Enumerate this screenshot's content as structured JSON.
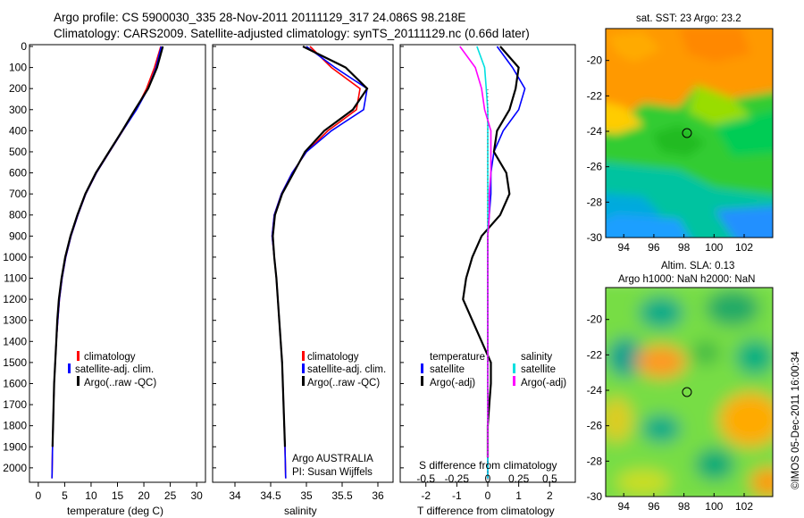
{
  "title_line1": "Argo profile: CS 5900030_335 28-Nov-2011 20111129_317 24.086S 98.218E",
  "title_line2": "Climatology: CARS2009. Satellite-adjusted climatology: synTS_20111129.nc (0.66d later)",
  "timestamp": "©IMOS 05-Dec-2011 16:00:34",
  "chart_data": [
    {
      "type": "line",
      "name": "temperature-profile",
      "xlabel": "temperature (deg C)",
      "ylabel": "",
      "xlim": [
        -1.5,
        31.5
      ],
      "ylim": [
        2060,
        0
      ],
      "xticks": [
        0,
        5,
        10,
        15,
        20,
        25,
        30
      ],
      "yticks": [
        0,
        100,
        200,
        300,
        400,
        500,
        600,
        700,
        800,
        900,
        1000,
        1100,
        1200,
        1300,
        1400,
        1500,
        1600,
        1700,
        1800,
        1900,
        2000
      ],
      "legend": [
        "climatology",
        "satellite-adj. clim.",
        "Argo(..raw -QC)"
      ],
      "legend_position": "lower-middle",
      "series": [
        {
          "name": "climatology",
          "color": "#ff0000",
          "x": [
            23.2,
            22.0,
            20.5,
            18.5,
            16.0,
            13.5,
            11.0,
            9.0,
            7.5,
            6.2,
            5.2,
            4.5,
            4.0,
            3.7,
            3.4,
            3.2,
            3.0,
            2.9,
            2.8,
            2.7,
            2.6
          ],
          "y": [
            0,
            100,
            200,
            300,
            400,
            500,
            600,
            700,
            800,
            900,
            1000,
            1100,
            1200,
            1300,
            1400,
            1500,
            1600,
            1700,
            1800,
            1900,
            2050
          ]
        },
        {
          "name": "satellite-adj. clim.",
          "color": "#0000ff",
          "x": [
            23.3,
            22.3,
            20.8,
            18.6,
            16.0,
            13.5,
            11.0,
            9.0,
            7.5,
            6.2,
            5.2,
            4.5,
            4.0,
            3.7,
            3.4,
            3.2,
            3.0,
            2.9,
            2.8,
            2.7,
            2.6
          ],
          "y": [
            0,
            100,
            200,
            300,
            400,
            500,
            600,
            700,
            800,
            900,
            1000,
            1100,
            1200,
            1300,
            1400,
            1500,
            1600,
            1700,
            1800,
            1900,
            2050
          ]
        },
        {
          "name": "Argo(..raw -QC)",
          "color": "#000000",
          "x": [
            23.6,
            22.5,
            20.8,
            18.3,
            15.9,
            13.4,
            10.9,
            8.9,
            7.4,
            6.1,
            5.1,
            4.4,
            3.9,
            3.6,
            3.4,
            3.2,
            3.0,
            2.9,
            2.8,
            2.7
          ],
          "y": [
            0,
            100,
            200,
            300,
            400,
            500,
            600,
            700,
            800,
            900,
            1000,
            1100,
            1200,
            1300,
            1400,
            1500,
            1600,
            1700,
            1800,
            1900
          ]
        }
      ]
    },
    {
      "type": "line",
      "name": "salinity-profile",
      "xlabel": "salinity",
      "xlim": [
        33.7,
        36.2
      ],
      "ylim": [
        2060,
        0
      ],
      "xticks": [
        34,
        34.5,
        35,
        35.5,
        36
      ],
      "xticklabels": [
        "34",
        "34.5",
        "35",
        "35.5",
        "36"
      ],
      "legend": [
        "climatology",
        "satellite-adj. clim.",
        "Argo(..raw -QC)"
      ],
      "annotation": [
        "Argo AUSTRALIA",
        "PI: Susan Wijffels"
      ],
      "series": [
        {
          "name": "climatology",
          "color": "#ff0000",
          "x": [
            35.05,
            35.35,
            35.75,
            35.7,
            35.3,
            35.0,
            34.8,
            34.65,
            34.55,
            34.52,
            34.55,
            34.58,
            34.6,
            34.62,
            34.64,
            34.66,
            34.67,
            34.68,
            34.69,
            34.7,
            34.71
          ],
          "y": [
            0,
            100,
            200,
            300,
            400,
            500,
            600,
            700,
            800,
            900,
            1000,
            1100,
            1200,
            1300,
            1400,
            1500,
            1600,
            1700,
            1800,
            1900,
            2050
          ]
        },
        {
          "name": "satellite-adj. clim.",
          "color": "#0000ff",
          "x": [
            35.0,
            35.4,
            35.85,
            35.8,
            35.35,
            35.0,
            34.8,
            34.65,
            34.55,
            34.52,
            34.55,
            34.58,
            34.6,
            34.62,
            34.64,
            34.66,
            34.67,
            34.68,
            34.69,
            34.7,
            34.71
          ],
          "y": [
            0,
            100,
            200,
            300,
            400,
            500,
            600,
            700,
            800,
            900,
            1000,
            1100,
            1200,
            1300,
            1400,
            1500,
            1600,
            1700,
            1800,
            1900,
            2050
          ]
        },
        {
          "name": "Argo(..raw -QC)",
          "color": "#000000",
          "x": [
            34.95,
            35.55,
            35.85,
            35.65,
            35.25,
            34.98,
            34.82,
            34.66,
            34.56,
            34.53,
            34.55,
            34.58,
            34.6,
            34.62,
            34.64,
            34.66,
            34.67,
            34.68,
            34.69,
            34.7
          ],
          "y": [
            0,
            100,
            200,
            300,
            400,
            500,
            600,
            700,
            800,
            900,
            1000,
            1100,
            1200,
            1300,
            1400,
            1500,
            1600,
            1700,
            1800,
            1900
          ]
        }
      ]
    },
    {
      "type": "line",
      "name": "difference-profile",
      "xlabel": "T difference from climatology",
      "xlabel_top": "S difference from climatology",
      "xlim": [
        -2.8,
        2.8
      ],
      "ylim": [
        2060,
        0
      ],
      "xticks": [
        -2,
        -1,
        0,
        1,
        2
      ],
      "xticklabels": [
        "-2",
        "-1",
        "0",
        "1",
        "2"
      ],
      "sticks": [
        -0.5,
        -0.25,
        0,
        0.25,
        0.5
      ],
      "sticklabels": [
        "-0.5",
        "-0.25",
        "0",
        "0.25",
        "0.5"
      ],
      "legend_temperature_title": "temperature",
      "legend_salinity_title": "salinity",
      "legend": [
        "satellite",
        "Argo(-adj)",
        "satellite",
        "Argo(-adj)"
      ],
      "series": [
        {
          "name": "T satellite",
          "color": "#0000ff",
          "x": [
            0.3,
            0.8,
            1.2,
            1.0,
            0.5,
            0.2,
            0.1,
            0.1,
            0.05,
            0.0,
            0.0,
            0.0,
            0.0,
            0.0,
            0.0,
            0.0,
            0.0,
            0.0,
            0.0,
            0.0
          ],
          "y": [
            0,
            100,
            200,
            300,
            400,
            500,
            600,
            700,
            800,
            900,
            1000,
            1100,
            1200,
            1300,
            1400,
            1500,
            1600,
            1700,
            1800,
            2050
          ]
        },
        {
          "name": "T Argo(-adj)",
          "color": "#000000",
          "x": [
            0.4,
            1.0,
            0.9,
            0.7,
            0.3,
            0.2,
            0.6,
            0.7,
            0.4,
            -0.2,
            -0.5,
            -0.7,
            -0.8,
            -0.5,
            -0.2,
            0.1,
            0.1,
            0.05,
            0.0,
            0.0
          ],
          "y": [
            0,
            100,
            200,
            300,
            400,
            500,
            600,
            700,
            800,
            900,
            1000,
            1100,
            1200,
            1300,
            1400,
            1500,
            1600,
            1700,
            1800,
            1950
          ]
        },
        {
          "name": "S satellite",
          "color": "#00e0e0",
          "x": [
            -0.35,
            -0.1,
            -0.05,
            0.0,
            0.0,
            0.0,
            0.0,
            0.0,
            0.0,
            0.0,
            0.0,
            0.0,
            0.0,
            0.0,
            0.0,
            0.0,
            0.0,
            0.0,
            0.0,
            0.0
          ],
          "y": [
            0,
            100,
            200,
            300,
            400,
            500,
            600,
            700,
            800,
            900,
            1000,
            1100,
            1200,
            1300,
            1400,
            1500,
            1600,
            1700,
            1800,
            2050
          ]
        },
        {
          "name": "S Argo(-adj)",
          "color": "#ff00ff",
          "x": [
            -0.9,
            -0.4,
            -0.2,
            -0.1,
            0.1,
            0.1,
            0.1,
            0.05,
            0.05,
            0.0,
            0.0,
            0.0,
            0.0,
            0.0,
            0.0,
            0.0,
            0.0,
            0.0,
            0.0
          ],
          "y": [
            0,
            100,
            200,
            300,
            400,
            500,
            600,
            700,
            800,
            900,
            1000,
            1100,
            1200,
            1300,
            1400,
            1500,
            1600,
            1700,
            1950
          ]
        }
      ]
    },
    {
      "type": "heatmap",
      "name": "sst-map",
      "title": "sat. SST: 23 Argo: 23.2",
      "xlim": [
        92.8,
        103.9
      ],
      "ylim": [
        -30,
        -18.2
      ],
      "xticks": [
        94,
        96,
        98,
        100,
        102
      ],
      "yticks": [
        -20,
        -22,
        -24,
        -26,
        -28,
        -30
      ],
      "marker": {
        "lon": 98.2,
        "lat": -24.1
      }
    },
    {
      "type": "heatmap",
      "name": "sla-map",
      "title_line1": "Altim. SLA: 0.13",
      "title_line2": "Argo h1000: NaN h2000: NaN",
      "xlim": [
        92.8,
        103.9
      ],
      "ylim": [
        -30,
        -18.2
      ],
      "xticks": [
        94,
        96,
        98,
        100,
        102
      ],
      "yticks": [
        -20,
        -22,
        -24,
        -26,
        -28,
        -30
      ],
      "marker": {
        "lon": 98.2,
        "lat": -24.1
      }
    }
  ]
}
